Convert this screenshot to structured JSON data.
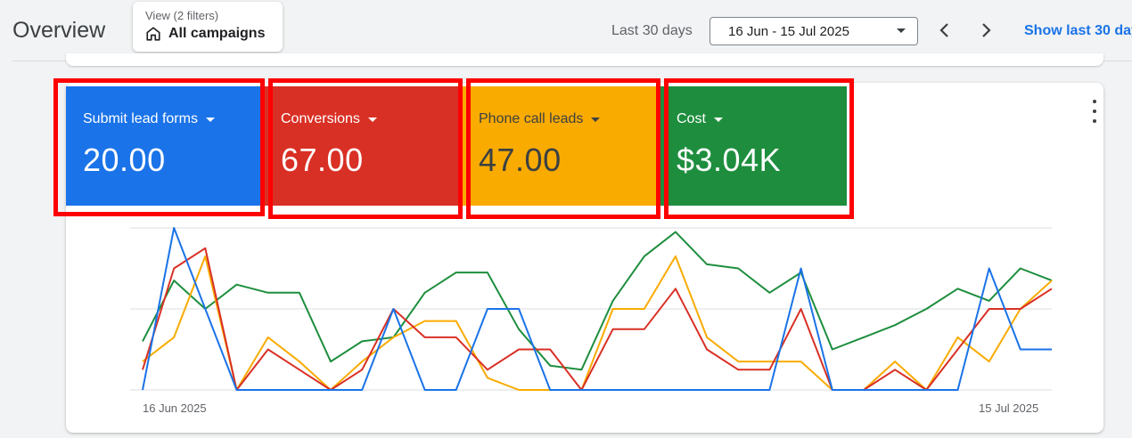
{
  "header": {
    "title": "Overview",
    "filter_sub": "View (2 filters)",
    "filter_main": "All campaigns",
    "range_label": "Last 30 days",
    "date_range": "16 Jun - 15 Jul 2025",
    "show_last": "Show last 30 days"
  },
  "metrics": [
    {
      "name": "Submit lead forms",
      "value": "20.00",
      "color": "#1a73e8",
      "text_color": "#ffffff"
    },
    {
      "name": "Conversions",
      "value": "67.00",
      "color": "#d93025",
      "text_color": "#ffffff"
    },
    {
      "name": "Phone call leads",
      "value": "47.00",
      "color": "#f9ab00",
      "text_color": "#3c4043"
    },
    {
      "name": "Cost",
      "value": "$3.04K",
      "color": "#1e8e3e",
      "text_color": "#ffffff"
    }
  ],
  "chart_data": {
    "type": "line",
    "x_start_label": "16 Jun 2025",
    "x_end_label": "15 Jul 2025",
    "x": [
      1,
      2,
      3,
      4,
      5,
      6,
      7,
      8,
      9,
      10,
      11,
      12,
      13,
      14,
      15,
      16,
      17,
      18,
      19,
      20,
      21,
      22,
      23,
      24,
      25,
      26,
      27,
      28,
      29,
      30
    ],
    "ylim": [
      0,
      4
    ],
    "grid": true,
    "series": [
      {
        "color": "#1a73e8",
        "values": [
          0,
          4,
          2,
          0,
          0,
          0,
          0,
          0,
          2,
          0,
          0,
          2,
          2,
          0,
          0,
          0,
          0,
          0,
          0,
          0,
          0,
          3,
          0,
          0,
          0,
          0,
          0,
          3,
          1,
          1
        ]
      },
      {
        "color": "#d93025",
        "values": [
          0.5,
          3,
          3.5,
          0,
          1,
          0.5,
          0,
          0.5,
          2,
          1.3,
          1.3,
          0.5,
          1,
          1,
          0,
          1.5,
          1.5,
          2.5,
          1,
          0.5,
          0.5,
          2,
          0,
          0,
          0.5,
          0,
          1,
          2,
          2,
          2.5
        ]
      },
      {
        "color": "#f9ab00",
        "values": [
          0.7,
          1.3,
          3.3,
          0,
          1.3,
          0.7,
          0,
          0.7,
          1.3,
          1.7,
          1.7,
          0.3,
          0,
          0,
          0,
          2,
          2,
          3.3,
          1.3,
          0.7,
          0.7,
          0.7,
          0,
          0,
          0.7,
          0,
          1.3,
          0.7,
          2,
          2.7
        ]
      },
      {
        "color": "#1e8e3e",
        "values": [
          1.2,
          2.7,
          2,
          2.6,
          2.4,
          2.4,
          0.7,
          1.2,
          1.3,
          2.4,
          2.9,
          2.9,
          1.5,
          0.6,
          0.5,
          2.2,
          3.3,
          3.9,
          3.1,
          3,
          2.4,
          2.9,
          1,
          1.3,
          1.6,
          2,
          2.5,
          2.2,
          3,
          2.7
        ]
      }
    ]
  }
}
